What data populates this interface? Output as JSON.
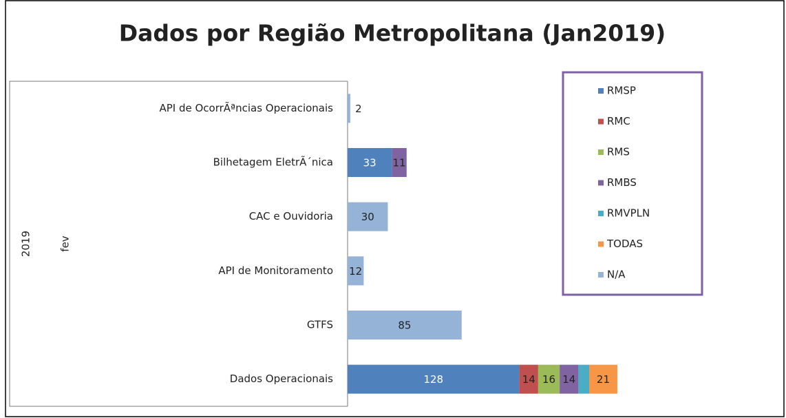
{
  "chart_data": {
    "type": "bar",
    "orientation": "horizontal",
    "stacked": true,
    "title": "Dados por Região Metropolitana (Jan2019)",
    "category_groups": [
      "2019",
      "fev"
    ],
    "categories": [
      "API de OcorrÃªncias Operacionais",
      "Bilhetagem EletrÃ´nica",
      "CAC e Ouvidoria",
      "API de Monitoramento",
      "GTFS",
      "Dados Operacionais"
    ],
    "series": [
      {
        "name": "RMSP",
        "color": "#4f81bd",
        "values": [
          null,
          33,
          null,
          null,
          null,
          128
        ]
      },
      {
        "name": "RMC",
        "color": "#c0504d",
        "values": [
          null,
          null,
          null,
          null,
          null,
          14
        ]
      },
      {
        "name": "RMS",
        "color": "#9bbb59",
        "values": [
          null,
          null,
          null,
          null,
          null,
          16
        ]
      },
      {
        "name": "RMBS",
        "color": "#8064a2",
        "values": [
          null,
          11,
          null,
          null,
          null,
          14
        ]
      },
      {
        "name": "RMVPLN",
        "color": "#4bacc6",
        "values": [
          null,
          null,
          null,
          null,
          null,
          8
        ]
      },
      {
        "name": "TODAS",
        "color": "#f79646",
        "values": [
          null,
          null,
          null,
          null,
          null,
          21
        ]
      },
      {
        "name": "N/A",
        "color": "#95b3d7",
        "values": [
          2,
          null,
          30,
          12,
          85,
          null
        ]
      }
    ],
    "legend": "right"
  }
}
